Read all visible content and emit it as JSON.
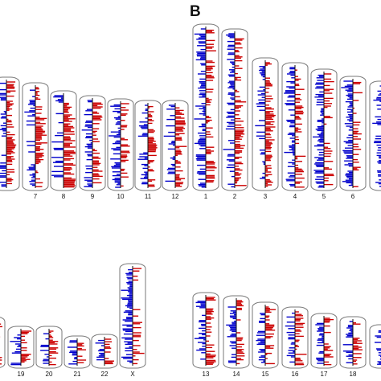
{
  "panel_label": "B",
  "colors": {
    "gain": "#cc0000",
    "loss": "#0000cc",
    "outline": "#777777",
    "axis": "#111111"
  },
  "left_top": [
    {
      "label": ""
    },
    {
      "label": ""
    },
    {
      "label": "7"
    },
    {
      "label": "8"
    },
    {
      "label": "9"
    },
    {
      "label": "10"
    },
    {
      "label": "11"
    },
    {
      "label": "12"
    }
  ],
  "right_top": [
    {
      "label": "1"
    },
    {
      "label": "2"
    },
    {
      "label": "3"
    },
    {
      "label": "4"
    },
    {
      "label": "5"
    },
    {
      "label": "6"
    },
    {
      "label": ""
    }
  ],
  "left_bottom": [
    {
      "label": ""
    },
    {
      "label": "19"
    },
    {
      "label": "20"
    },
    {
      "label": "21"
    },
    {
      "label": "22"
    },
    {
      "label": "X"
    }
  ],
  "right_bottom": [
    {
      "label": "13"
    },
    {
      "label": "14"
    },
    {
      "label": "15"
    },
    {
      "label": "16"
    },
    {
      "label": "17"
    },
    {
      "label": "18"
    },
    {
      "label": ""
    }
  ]
}
